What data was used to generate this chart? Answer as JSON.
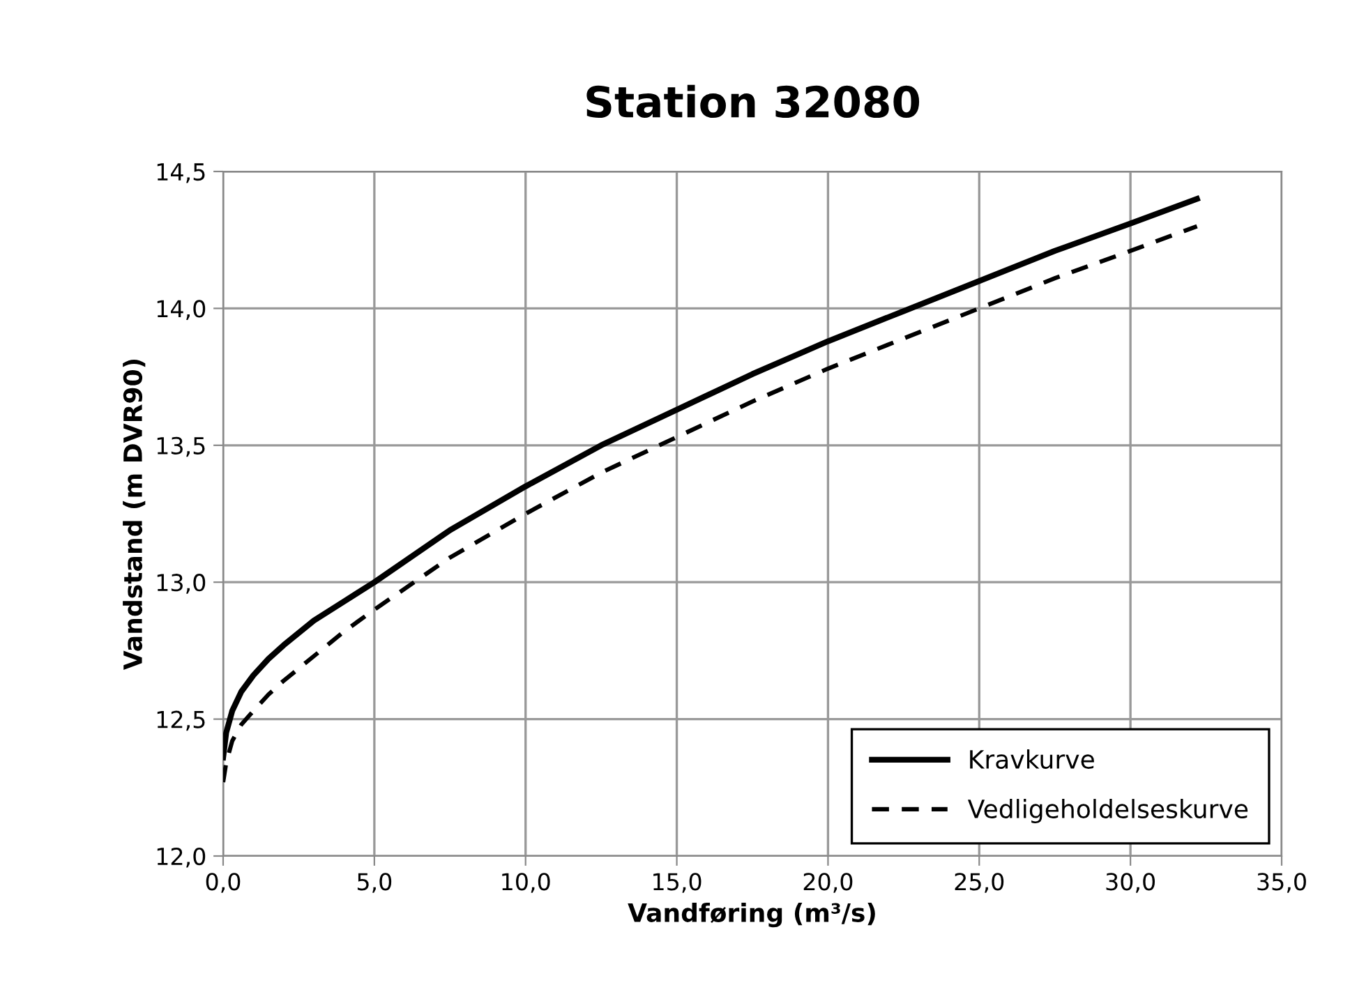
{
  "chart_data": {
    "type": "line",
    "title": "Station 32080",
    "xlabel": "Vandføring (m³/s)",
    "ylabel": "Vandstand (m DVR90)",
    "xlim": [
      0,
      35
    ],
    "ylim": [
      12.0,
      14.5
    ],
    "xticks": [
      {
        "value": 0,
        "label": "0,0"
      },
      {
        "value": 5,
        "label": "5,0"
      },
      {
        "value": 10,
        "label": "10,0"
      },
      {
        "value": 15,
        "label": "15,0"
      },
      {
        "value": 20,
        "label": "20,0"
      },
      {
        "value": 25,
        "label": "25,0"
      },
      {
        "value": 30,
        "label": "30,0"
      },
      {
        "value": 35,
        "label": "35,0"
      }
    ],
    "yticks": [
      {
        "value": 12.0,
        "label": "12,0"
      },
      {
        "value": 12.5,
        "label": "12,5"
      },
      {
        "value": 13.0,
        "label": "13,0"
      },
      {
        "value": 13.5,
        "label": "13,5"
      },
      {
        "value": 14.0,
        "label": "14,0"
      },
      {
        "value": 14.5,
        "label": "14,5"
      }
    ],
    "grid": true,
    "legend": "bottom right",
    "series": [
      {
        "name": "Kravkurve",
        "color": "#000000",
        "line_style": "solid",
        "x": [
          0,
          0.1,
          0.3,
          0.6,
          1,
          1.5,
          2,
          3,
          4,
          5,
          7.5,
          10,
          12.5,
          15,
          17.5,
          20,
          22.5,
          25,
          27.5,
          30,
          32.2
        ],
        "values": [
          12.36,
          12.45,
          12.53,
          12.6,
          12.66,
          12.72,
          12.77,
          12.86,
          12.93,
          13.0,
          13.19,
          13.35,
          13.5,
          13.63,
          13.76,
          13.88,
          13.99,
          14.1,
          14.21,
          14.31,
          14.4
        ]
      },
      {
        "name": "Vedligeholdelseskurve",
        "color": "#000000",
        "line_style": "dashed",
        "x": [
          0,
          0.1,
          0.3,
          0.6,
          1,
          1.5,
          2,
          3,
          4,
          5,
          7.5,
          10,
          12.5,
          15,
          17.5,
          20,
          22.5,
          25,
          27.5,
          30,
          32.2
        ],
        "values": [
          12.27,
          12.34,
          12.42,
          12.48,
          12.53,
          12.59,
          12.64,
          12.73,
          12.82,
          12.9,
          13.09,
          13.25,
          13.4,
          13.53,
          13.66,
          13.78,
          13.89,
          14.0,
          14.11,
          14.21,
          14.3
        ]
      }
    ]
  }
}
